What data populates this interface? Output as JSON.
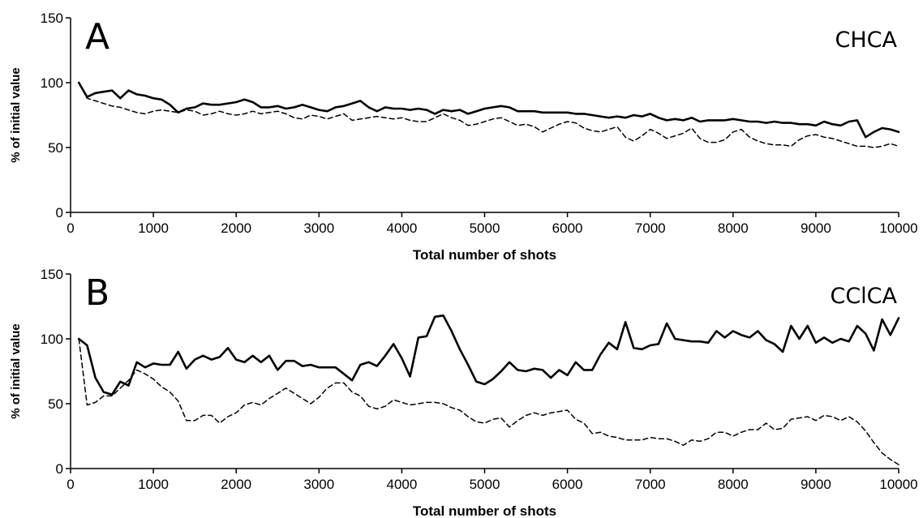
{
  "chart_data": [
    {
      "type": "line",
      "panel_letter": "A",
      "title": "CHCA",
      "xlabel": "Total number of shots",
      "ylabel": "% of initial value",
      "xlim": [
        0,
        10000
      ],
      "ylim": [
        0,
        150
      ],
      "xticks": [
        0,
        1000,
        2000,
        3000,
        4000,
        5000,
        6000,
        7000,
        8000,
        9000,
        10000
      ],
      "yticks": [
        0,
        50,
        100,
        150
      ],
      "series": [
        {
          "style": "solid",
          "x": [
            100,
            200,
            300,
            400,
            500,
            600,
            700,
            800,
            900,
            1000,
            1100,
            1200,
            1300,
            1400,
            1500,
            1600,
            1700,
            1800,
            1900,
            2000,
            2100,
            2200,
            2300,
            2400,
            2500,
            2600,
            2700,
            2800,
            2900,
            3000,
            3100,
            3200,
            3300,
            3400,
            3500,
            3600,
            3700,
            3800,
            3900,
            4000,
            4100,
            4200,
            4300,
            4400,
            4500,
            4600,
            4700,
            4800,
            4900,
            5000,
            5100,
            5200,
            5300,
            5400,
            5500,
            5600,
            5700,
            5800,
            5900,
            6000,
            6100,
            6200,
            6300,
            6400,
            6500,
            6600,
            6700,
            6800,
            6900,
            7000,
            7100,
            7200,
            7300,
            7400,
            7500,
            7600,
            7700,
            7800,
            7900,
            8000,
            8100,
            8200,
            8300,
            8400,
            8500,
            8600,
            8700,
            8800,
            8900,
            9000,
            9100,
            9200,
            9300,
            9400,
            9500,
            9600,
            9700,
            9800,
            9900,
            10000
          ],
          "y": [
            100,
            89,
            92,
            93,
            94,
            88,
            94,
            91,
            90,
            88,
            87,
            83,
            77,
            80,
            81,
            84,
            83,
            83,
            84,
            85,
            87,
            85,
            81,
            81,
            82,
            80,
            81,
            83,
            81,
            79,
            78,
            81,
            82,
            84,
            86,
            81,
            78,
            81,
            80,
            80,
            79,
            80,
            79,
            76,
            79,
            78,
            79,
            76,
            78,
            80,
            81,
            82,
            81,
            78,
            78,
            78,
            77,
            77,
            77,
            77,
            76,
            76,
            75,
            74,
            73,
            74,
            73,
            75,
            74,
            76,
            73,
            71,
            72,
            71,
            73,
            70,
            71,
            71,
            71,
            72,
            71,
            70,
            70,
            69,
            70,
            69,
            69,
            68,
            68,
            67,
            70,
            68,
            67,
            70,
            71,
            58,
            62,
            65,
            64,
            62
          ]
        },
        {
          "style": "dashed",
          "x": [
            100,
            200,
            300,
            400,
            500,
            600,
            700,
            800,
            900,
            1000,
            1100,
            1200,
            1300,
            1400,
            1500,
            1600,
            1700,
            1800,
            1900,
            2000,
            2100,
            2200,
            2300,
            2400,
            2500,
            2600,
            2700,
            2800,
            2900,
            3000,
            3100,
            3200,
            3300,
            3400,
            3500,
            3600,
            3700,
            3800,
            3900,
            4000,
            4100,
            4200,
            4300,
            4400,
            4500,
            4600,
            4700,
            4800,
            4900,
            5000,
            5100,
            5200,
            5300,
            5400,
            5500,
            5600,
            5700,
            5800,
            5900,
            6000,
            6100,
            6200,
            6300,
            6400,
            6500,
            6600,
            6700,
            6800,
            6900,
            7000,
            7100,
            7200,
            7300,
            7400,
            7500,
            7600,
            7700,
            7800,
            7900,
            8000,
            8100,
            8200,
            8300,
            8400,
            8500,
            8600,
            8700,
            8800,
            8900,
            9000,
            9100,
            9200,
            9300,
            9400,
            9500,
            9600,
            9700,
            9800,
            9900,
            10000
          ],
          "y": [
            100,
            88,
            86,
            84,
            82,
            81,
            79,
            77,
            76,
            78,
            79,
            78,
            77,
            79,
            78,
            75,
            76,
            78,
            76,
            75,
            76,
            78,
            76,
            77,
            78,
            76,
            73,
            72,
            75,
            74,
            72,
            74,
            76,
            71,
            72,
            73,
            74,
            73,
            72,
            73,
            71,
            70,
            70,
            73,
            76,
            73,
            71,
            67,
            68,
            70,
            72,
            73,
            70,
            67,
            68,
            66,
            62,
            65,
            68,
            70,
            69,
            65,
            63,
            62,
            64,
            66,
            58,
            55,
            59,
            64,
            61,
            57,
            59,
            61,
            65,
            57,
            54,
            54,
            56,
            62,
            64,
            58,
            55,
            53,
            52,
            52,
            51,
            56,
            59,
            60,
            58,
            57,
            55,
            53,
            51,
            51,
            50,
            51,
            53,
            51
          ]
        }
      ]
    },
    {
      "type": "line",
      "panel_letter": "B",
      "title": "CClCA",
      "xlabel": "Total number of shots",
      "ylabel": "% of initial value",
      "xlim": [
        0,
        10000
      ],
      "ylim": [
        0,
        150
      ],
      "xticks": [
        0,
        1000,
        2000,
        3000,
        4000,
        5000,
        6000,
        7000,
        8000,
        9000,
        10000
      ],
      "yticks": [
        0,
        50,
        100,
        150
      ],
      "series": [
        {
          "style": "solid",
          "x": [
            100,
            200,
            300,
            400,
            500,
            600,
            700,
            800,
            900,
            1000,
            1100,
            1200,
            1300,
            1400,
            1500,
            1600,
            1700,
            1800,
            1900,
            2000,
            2100,
            2200,
            2300,
            2400,
            2500,
            2600,
            2700,
            2800,
            2900,
            3000,
            3100,
            3200,
            3300,
            3400,
            3500,
            3600,
            3700,
            3800,
            3900,
            4000,
            4100,
            4200,
            4300,
            4400,
            4500,
            4600,
            4700,
            4800,
            4900,
            5000,
            5100,
            5200,
            5300,
            5400,
            5500,
            5600,
            5700,
            5800,
            5900,
            6000,
            6100,
            6200,
            6300,
            6400,
            6500,
            6600,
            6700,
            6800,
            6900,
            7000,
            7100,
            7200,
            7300,
            7400,
            7500,
            7600,
            7700,
            7800,
            7900,
            8000,
            8100,
            8200,
            8300,
            8400,
            8500,
            8600,
            8700,
            8800,
            8900,
            9000,
            9100,
            9200,
            9300,
            9400,
            9500,
            9600,
            9700,
            9800,
            9900,
            10000
          ],
          "y": [
            100,
            95,
            70,
            59,
            57,
            67,
            64,
            82,
            78,
            81,
            80,
            80,
            90,
            77,
            84,
            87,
            84,
            86,
            93,
            84,
            82,
            87,
            82,
            87,
            76,
            83,
            83,
            79,
            80,
            78,
            78,
            78,
            73,
            68,
            80,
            82,
            79,
            87,
            96,
            85,
            71,
            101,
            102,
            117,
            118,
            106,
            92,
            80,
            67,
            65,
            69,
            75,
            82,
            76,
            75,
            77,
            76,
            70,
            76,
            72,
            82,
            76,
            76,
            88,
            97,
            92,
            113,
            93,
            92,
            95,
            96,
            112,
            100,
            99,
            98,
            98,
            97,
            106,
            101,
            106,
            103,
            101,
            106,
            99,
            96,
            90,
            110,
            100,
            110,
            97,
            101,
            97,
            100,
            98,
            110,
            104,
            91,
            115,
            103,
            116
          ]
        },
        {
          "style": "dashed",
          "x": [
            100,
            200,
            300,
            400,
            500,
            600,
            700,
            800,
            900,
            1000,
            1100,
            1200,
            1300,
            1400,
            1500,
            1600,
            1700,
            1800,
            1900,
            2000,
            2100,
            2200,
            2300,
            2400,
            2500,
            2600,
            2700,
            2800,
            2900,
            3000,
            3100,
            3200,
            3300,
            3400,
            3500,
            3600,
            3700,
            3800,
            3900,
            4000,
            4100,
            4200,
            4300,
            4400,
            4500,
            4600,
            4700,
            4800,
            4900,
            5000,
            5100,
            5200,
            5300,
            5400,
            5500,
            5600,
            5700,
            5800,
            5900,
            6000,
            6100,
            6200,
            6300,
            6400,
            6500,
            6600,
            6700,
            6800,
            6900,
            7000,
            7100,
            7200,
            7300,
            7400,
            7500,
            7600,
            7700,
            7800,
            7900,
            8000,
            8100,
            8200,
            8300,
            8400,
            8500,
            8600,
            8700,
            8800,
            8900,
            9000,
            9100,
            9200,
            9300,
            9400,
            9500,
            9600,
            9700,
            9800,
            9900,
            10000
          ],
          "y": [
            100,
            49,
            51,
            56,
            56,
            62,
            68,
            76,
            73,
            69,
            63,
            59,
            52,
            37,
            37,
            41,
            41,
            35,
            40,
            43,
            49,
            51,
            49,
            54,
            58,
            62,
            58,
            54,
            50,
            55,
            62,
            66,
            66,
            59,
            56,
            48,
            46,
            48,
            53,
            51,
            49,
            50,
            51,
            51,
            50,
            47,
            45,
            40,
            36,
            35,
            38,
            39,
            32,
            37,
            41,
            43,
            41,
            43,
            44,
            45,
            38,
            35,
            27,
            28,
            25,
            24,
            22,
            22,
            22,
            24,
            23,
            23,
            21,
            18,
            22,
            21,
            23,
            28,
            28,
            25,
            28,
            30,
            30,
            35,
            30,
            31,
            38,
            39,
            40,
            37,
            41,
            40,
            37,
            40,
            36,
            29,
            20,
            12,
            7,
            3
          ]
        }
      ]
    }
  ]
}
